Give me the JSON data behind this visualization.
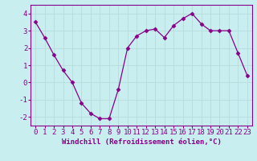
{
  "x": [
    0,
    1,
    2,
    3,
    4,
    5,
    6,
    7,
    8,
    9,
    10,
    11,
    12,
    13,
    14,
    15,
    16,
    17,
    18,
    19,
    20,
    21,
    22,
    23
  ],
  "y": [
    3.5,
    2.6,
    1.6,
    0.7,
    0.0,
    -1.2,
    -1.8,
    -2.1,
    -2.1,
    -0.4,
    2.0,
    2.7,
    3.0,
    3.1,
    2.6,
    3.3,
    3.7,
    4.0,
    3.4,
    3.0,
    3.0,
    3.0,
    1.7,
    0.4
  ],
  "line_color": "#880088",
  "marker": "D",
  "marker_size": 2.5,
  "bg_color": "#c8eef0",
  "grid_color": "#aadddd",
  "xlabel": "Windchill (Refroidissement éolien,°C)",
  "xlabel_fontsize": 6.5,
  "tick_fontsize": 6.5,
  "ylim": [
    -2.5,
    4.5
  ],
  "xlim": [
    -0.5,
    23.5
  ],
  "yticks": [
    -2,
    -1,
    0,
    1,
    2,
    3,
    4
  ],
  "xticks": [
    0,
    1,
    2,
    3,
    4,
    5,
    6,
    7,
    8,
    9,
    10,
    11,
    12,
    13,
    14,
    15,
    16,
    17,
    18,
    19,
    20,
    21,
    22,
    23
  ],
  "spine_color": "#880088",
  "text_color": "#880088"
}
